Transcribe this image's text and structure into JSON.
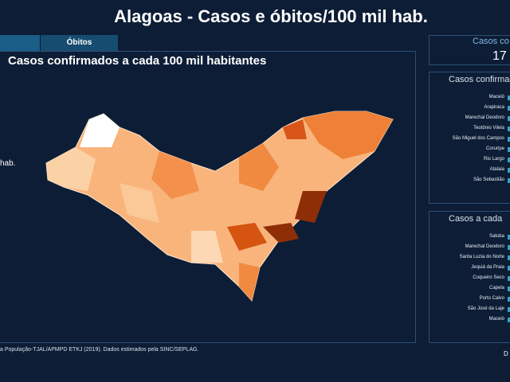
{
  "header": {
    "title": "Alagoas - Casos e óbitos/100 mil hab."
  },
  "tabs": [
    "Óbitos"
  ],
  "map_panel": {
    "title": "Casos confirmados a cada 100 mil habitantes",
    "side_label": "hab.",
    "source": "a População-TJAL/APMPD ETKJ (2019). Dados estimados pela SINC/SEPLAG."
  },
  "card": {
    "label": "Casos co",
    "value": "17"
  },
  "list_1": {
    "title": "Casos confirmad",
    "items": [
      "Maceió",
      "Arapiraca",
      "Marechal Deodoro",
      "Teotônio Vilela",
      "São Miguel dos Campos",
      "Coruripe",
      "Rio Largo",
      "Atalaia",
      "São Sebastião"
    ]
  },
  "list_2": {
    "title": "Casos a cada",
    "items": [
      "Satuba",
      "Marechal Deodoro",
      "Santa Luzia do Norte",
      "Jequiá da Praia",
      "Coqueiro Seco",
      "Capela",
      "Porto Calvo",
      "São José da Laje",
      "Maceió"
    ]
  },
  "footer": {
    "corner": "D"
  }
}
